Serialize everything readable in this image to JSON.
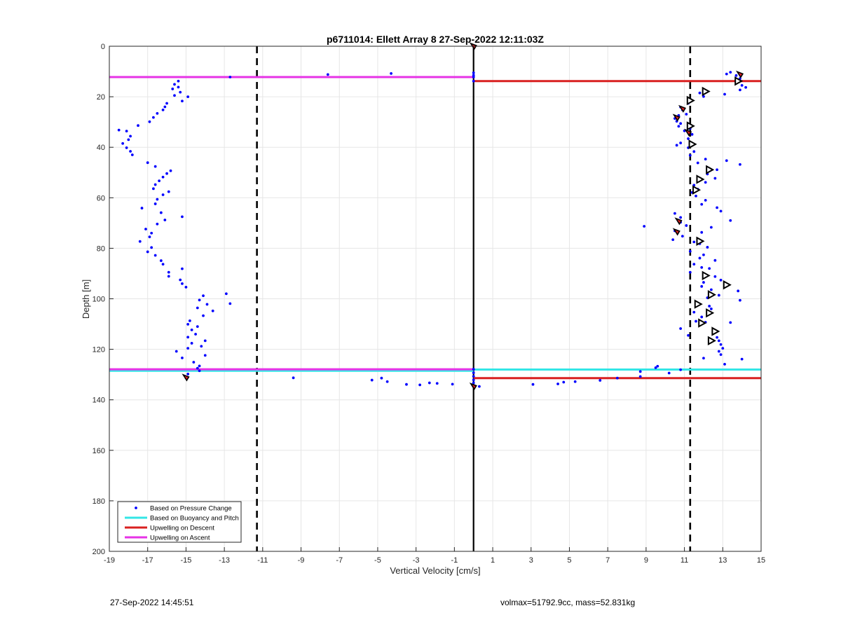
{
  "footer": {
    "timestamp": "27-Sep-2022 14:45:51",
    "glider_info": "volmax=51792.9cc, mass=52.831kg"
  },
  "chart_data": {
    "type": "scatter",
    "title": "p6711014: Ellett Array 8 27-Sep-2022 12:11:03Z",
    "xlabel": "Vertical Velocity [cm/s]",
    "ylabel": "Depth [m]",
    "xlim": [
      -19,
      15
    ],
    "ylim": [
      0,
      200
    ],
    "y_reversed": true,
    "xticks": [
      -19,
      -17,
      -15,
      -13,
      -11,
      -9,
      -7,
      -5,
      -3,
      -1,
      1,
      3,
      5,
      7,
      9,
      11,
      13,
      15
    ],
    "yticks": [
      0,
      20,
      40,
      60,
      80,
      100,
      120,
      140,
      160,
      180,
      200
    ],
    "grid": true,
    "legend_position": "bottom-left",
    "legend": [
      {
        "label": "Based on Pressure Change",
        "kind": "marker",
        "color": "#0000ff"
      },
      {
        "label": "Based on Buoyancy and Pitch",
        "kind": "line",
        "color": "#33e6e6"
      },
      {
        "label": "Upwelling on Descent",
        "kind": "line",
        "color": "#d92020"
      },
      {
        "label": "Upwelling on Ascent",
        "kind": "line",
        "color": "#e633e6"
      }
    ],
    "colors": {
      "pressure": "#0000ff",
      "buoyancy": "#33e6e6",
      "descent": "#d92020",
      "ascent": "#e633e6",
      "threshold": "#000000",
      "highlight_fill": "#d92020"
    },
    "vertical_lines": [
      {
        "x": -11.3,
        "style": "dashed"
      },
      {
        "x": 0,
        "style": "solid"
      },
      {
        "x": 11.3,
        "style": "dashed"
      }
    ],
    "horizontal_segments": [
      {
        "series": "ascent",
        "y": 12.2,
        "x0": -19,
        "x1": 0
      },
      {
        "series": "descent",
        "y": 13.8,
        "x0": 0,
        "x1": 15
      },
      {
        "series": "buoyancy",
        "y": 128.5,
        "x0": -19,
        "x1": 0
      },
      {
        "series": "ascent",
        "y": 127.9,
        "x0": -19,
        "x1": 0
      },
      {
        "series": "buoyancy",
        "y": 128.0,
        "x0": 0,
        "x1": 15
      },
      {
        "series": "descent",
        "y": 131.4,
        "x0": 0,
        "x1": 15
      }
    ],
    "pressure_points": [
      [
        -12.7,
        12.2
      ],
      [
        -7.6,
        11.2
      ],
      [
        -4.3,
        10.8
      ],
      [
        -15.4,
        13.8
      ],
      [
        -15.6,
        15.1
      ],
      [
        -15.4,
        16.2
      ],
      [
        -15.7,
        16.9
      ],
      [
        -15.3,
        18.2
      ],
      [
        -15.6,
        19.5
      ],
      [
        -14.9,
        20.0
      ],
      [
        -15.2,
        21.7
      ],
      [
        -16.0,
        22.6
      ],
      [
        -16.1,
        24.0
      ],
      [
        -16.2,
        25.2
      ],
      [
        -16.5,
        26.6
      ],
      [
        -16.7,
        28.2
      ],
      [
        -16.9,
        29.9
      ],
      [
        -17.5,
        31.4
      ],
      [
        -18.1,
        33.6
      ],
      [
        -18.5,
        33.2
      ],
      [
        -17.9,
        35.6
      ],
      [
        -18.0,
        37.0
      ],
      [
        -18.3,
        38.5
      ],
      [
        -18.1,
        40.2
      ],
      [
        -17.9,
        41.6
      ],
      [
        -17.8,
        43.0
      ],
      [
        -17.0,
        46.1
      ],
      [
        -16.6,
        47.6
      ],
      [
        -15.8,
        49.3
      ],
      [
        -16.0,
        50.4
      ],
      [
        -16.2,
        51.8
      ],
      [
        -16.4,
        53.3
      ],
      [
        -16.6,
        54.8
      ],
      [
        -16.7,
        56.4
      ],
      [
        -15.9,
        57.6
      ],
      [
        -16.2,
        58.8
      ],
      [
        -16.5,
        60.6
      ],
      [
        -16.6,
        62.4
      ],
      [
        -17.3,
        64.1
      ],
      [
        -16.3,
        65.9
      ],
      [
        -15.2,
        67.5
      ],
      [
        -16.1,
        68.8
      ],
      [
        -16.5,
        70.4
      ],
      [
        -17.1,
        72.4
      ],
      [
        -16.8,
        74.0
      ],
      [
        -16.9,
        75.5
      ],
      [
        -17.4,
        77.3
      ],
      [
        -16.8,
        79.7
      ],
      [
        -17.0,
        81.4
      ],
      [
        -16.6,
        82.8
      ],
      [
        -16.3,
        84.9
      ],
      [
        -16.2,
        86.3
      ],
      [
        -15.2,
        88.1
      ],
      [
        -15.9,
        89.5
      ],
      [
        -15.9,
        91.1
      ],
      [
        -15.3,
        92.5
      ],
      [
        -15.2,
        94.0
      ],
      [
        -15.0,
        95.4
      ],
      [
        -14.1,
        98.8
      ],
      [
        -14.3,
        100.5
      ],
      [
        -13.9,
        102.2
      ],
      [
        -14.4,
        103.6
      ],
      [
        -13.6,
        104.8
      ],
      [
        -14.1,
        106.7
      ],
      [
        -14.8,
        108.7
      ],
      [
        -14.9,
        110.1
      ],
      [
        -14.4,
        111.0
      ],
      [
        -14.7,
        112.3
      ],
      [
        -14.5,
        114.0
      ],
      [
        -14.9,
        115.2
      ],
      [
        -14.0,
        116.6
      ],
      [
        -14.7,
        117.6
      ],
      [
        -14.2,
        118.8
      ],
      [
        -14.9,
        119.6
      ],
      [
        -15.5,
        120.8
      ],
      [
        -14.0,
        122.4
      ],
      [
        -15.2,
        123.4
      ],
      [
        -14.6,
        125.1
      ],
      [
        -14.3,
        126.6
      ],
      [
        -14.4,
        127.5
      ],
      [
        -14.3,
        128.5
      ],
      [
        -14.9,
        129.8
      ],
      [
        -12.9,
        98.0
      ],
      [
        -12.7,
        101.9
      ],
      [
        -15.0,
        131.3
      ],
      [
        -9.4,
        131.3
      ],
      [
        -5.3,
        132.2
      ],
      [
        -4.8,
        131.4
      ],
      [
        -4.5,
        132.8
      ],
      [
        -3.5,
        133.9
      ],
      [
        -2.8,
        134.1
      ],
      [
        -2.3,
        133.3
      ],
      [
        -1.9,
        133.5
      ],
      [
        -1.1,
        133.8
      ],
      [
        0.0,
        134.5
      ],
      [
        0.3,
        134.7
      ],
      [
        3.1,
        133.9
      ],
      [
        4.4,
        133.7
      ],
      [
        4.7,
        133.0
      ],
      [
        5.3,
        132.8
      ],
      [
        6.6,
        132.3
      ],
      [
        7.5,
        131.4
      ],
      [
        8.7,
        130.8
      ],
      [
        8.7,
        128.8
      ],
      [
        9.5,
        127.3
      ],
      [
        9.6,
        126.7
      ],
      [
        10.2,
        129.4
      ],
      [
        10.8,
        128.1
      ],
      [
        13.4,
        10.3
      ],
      [
        13.2,
        11.0
      ],
      [
        13.7,
        11.6
      ],
      [
        13.9,
        12.8
      ],
      [
        14.0,
        15.5
      ],
      [
        14.2,
        16.3
      ],
      [
        13.9,
        17.3
      ],
      [
        13.1,
        19.0
      ],
      [
        11.8,
        18.5
      ],
      [
        12.0,
        19.9
      ],
      [
        11.3,
        21.0
      ],
      [
        11.2,
        22.6
      ],
      [
        10.8,
        24.1
      ],
      [
        10.9,
        25.2
      ],
      [
        11.1,
        26.9
      ],
      [
        10.7,
        27.4
      ],
      [
        10.5,
        28.6
      ],
      [
        10.6,
        29.7
      ],
      [
        10.8,
        30.6
      ],
      [
        10.7,
        31.7
      ],
      [
        11.3,
        32.6
      ],
      [
        11.0,
        33.5
      ],
      [
        11.4,
        34.9
      ],
      [
        11.2,
        36.6
      ],
      [
        10.8,
        38.3
      ],
      [
        10.6,
        39.2
      ],
      [
        11.2,
        40.2
      ],
      [
        11.5,
        41.7
      ],
      [
        11.3,
        43.2
      ],
      [
        12.1,
        44.7
      ],
      [
        11.7,
        46.2
      ],
      [
        13.9,
        46.8
      ],
      [
        13.2,
        45.3
      ],
      [
        12.7,
        48.9
      ],
      [
        12.2,
        50.6
      ],
      [
        12.6,
        52.3
      ],
      [
        12.1,
        53.9
      ],
      [
        11.5,
        55.0
      ],
      [
        11.7,
        56.6
      ],
      [
        11.4,
        57.9
      ],
      [
        11.6,
        59.3
      ],
      [
        12.1,
        61.0
      ],
      [
        11.9,
        62.6
      ],
      [
        12.7,
        63.9
      ],
      [
        12.9,
        65.3
      ],
      [
        10.5,
        66.2
      ],
      [
        10.8,
        67.8
      ],
      [
        13.4,
        69.0
      ],
      [
        10.8,
        69.7
      ],
      [
        8.9,
        71.3
      ],
      [
        11.1,
        71.0
      ],
      [
        12.4,
        71.7
      ],
      [
        10.5,
        73.1
      ],
      [
        11.9,
        73.7
      ],
      [
        10.9,
        75.2
      ],
      [
        10.4,
        76.6
      ],
      [
        11.5,
        77.5
      ],
      [
        11.8,
        78.2
      ],
      [
        12.2,
        79.6
      ],
      [
        11.3,
        81.2
      ],
      [
        12.0,
        82.6
      ],
      [
        11.8,
        83.9
      ],
      [
        12.6,
        84.8
      ],
      [
        11.5,
        86.3
      ],
      [
        11.9,
        87.6
      ],
      [
        12.3,
        88.0
      ],
      [
        11.3,
        89.5
      ],
      [
        12.1,
        90.6
      ],
      [
        12.6,
        91.2
      ],
      [
        12.9,
        92.6
      ],
      [
        12.0,
        93.5
      ],
      [
        11.9,
        95.1
      ],
      [
        12.4,
        96.4
      ],
      [
        13.8,
        96.9
      ],
      [
        12.8,
        98.6
      ],
      [
        12.2,
        99.6
      ],
      [
        13.9,
        100.6
      ],
      [
        11.6,
        101.7
      ],
      [
        12.3,
        102.9
      ],
      [
        12.4,
        104.0
      ],
      [
        11.5,
        105.3
      ],
      [
        11.9,
        107.2
      ],
      [
        11.6,
        108.9
      ],
      [
        12.1,
        109.3
      ],
      [
        13.4,
        109.4
      ],
      [
        10.8,
        111.8
      ],
      [
        12.7,
        112.9
      ],
      [
        11.2,
        114.5
      ],
      [
        12.7,
        115.3
      ],
      [
        12.8,
        116.6
      ],
      [
        12.9,
        118.1
      ],
      [
        13.0,
        119.6
      ],
      [
        12.8,
        120.8
      ],
      [
        12.9,
        122.1
      ],
      [
        12.0,
        123.5
      ],
      [
        14.0,
        123.9
      ],
      [
        13.1,
        125.9
      ],
      [
        0.0,
        0.0
      ],
      [
        0.0,
        10.5
      ],
      [
        0.0,
        11.5
      ],
      [
        0.0,
        12.2
      ],
      [
        0.0,
        13.8
      ],
      [
        0.0,
        127.9
      ],
      [
        0.0,
        129.3
      ],
      [
        0.0,
        130.7
      ],
      [
        0.0,
        132.1
      ],
      [
        0.0,
        133.3
      ]
    ],
    "highlight_points": [
      [
        0.0,
        0.0
      ],
      [
        13.9,
        11.2
      ],
      [
        10.9,
        24.8
      ],
      [
        10.6,
        28.3
      ],
      [
        11.2,
        34.2
      ],
      [
        10.7,
        69.3
      ],
      [
        10.6,
        73.5
      ],
      [
        -15.0,
        131.2
      ],
      [
        0.0,
        134.7
      ]
    ],
    "triangle_points": [
      [
        13.8,
        13.8
      ],
      [
        12.1,
        17.9
      ],
      [
        11.3,
        21.5
      ],
      [
        11.3,
        31.6
      ],
      [
        11.4,
        38.8
      ],
      [
        12.3,
        48.9
      ],
      [
        11.8,
        52.7
      ],
      [
        11.6,
        56.9
      ],
      [
        11.8,
        77.2
      ],
      [
        12.1,
        90.8
      ],
      [
        13.2,
        94.5
      ],
      [
        12.4,
        98.4
      ],
      [
        11.7,
        102.1
      ],
      [
        12.3,
        105.6
      ],
      [
        11.9,
        109.6
      ],
      [
        12.6,
        112.9
      ],
      [
        12.4,
        116.6
      ]
    ]
  }
}
